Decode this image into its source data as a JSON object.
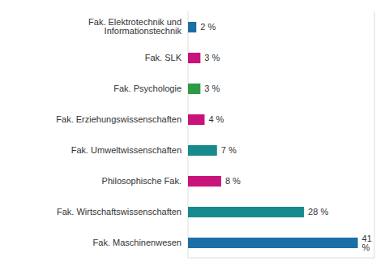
{
  "chart_data": {
    "type": "bar",
    "orientation": "horizontal",
    "categories": [
      "Fak. Elektrotechnik und Informationstechnik",
      "Fak. SLK",
      "Fak. Psychologie",
      "Fak. Erziehungswissenschaften",
      "Fak. Umweltwissenschaften",
      "Philosophische Fak.",
      "Fak. Wirtschaftswissenschaften",
      "Fak. Maschinenwesen"
    ],
    "values": [
      2,
      3,
      3,
      4,
      7,
      8,
      28,
      41
    ],
    "value_labels": [
      "2 %",
      "3 %",
      "3 %",
      "4 %",
      "7 %",
      "8 %",
      "28 %",
      "41 %"
    ],
    "colors": [
      "#1b6fa6",
      "#c8147a",
      "#2e9a44",
      "#c8147a",
      "#168a8c",
      "#c8147a",
      "#168a8c",
      "#1b6fa6"
    ],
    "xlim": [
      0,
      45
    ],
    "xticks": [
      0,
      5,
      10,
      15,
      20,
      25,
      30,
      35,
      40,
      45
    ],
    "grid": true,
    "data_labels": true,
    "tick_labels": "y"
  }
}
